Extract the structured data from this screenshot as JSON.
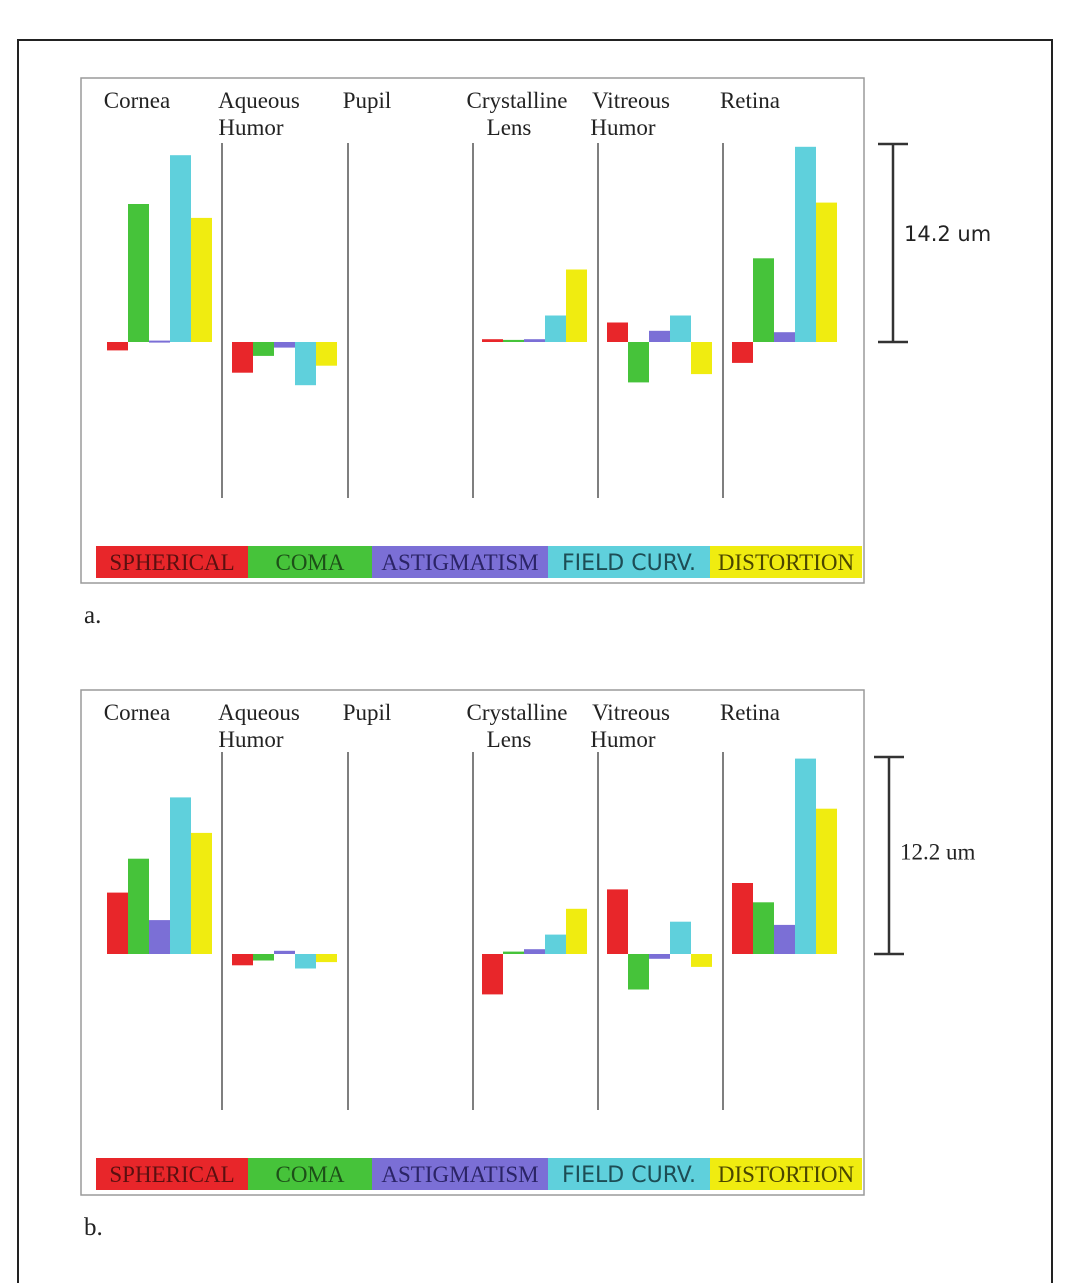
{
  "colors": {
    "spherical": "#e8262a",
    "coma": "#46c33a",
    "astigmatism": "#7b6fd6",
    "field_curv": "#5fd0dc",
    "distortion": "#f0ec10"
  },
  "legend": {
    "spherical": "SPHERICAL",
    "coma": "COMA",
    "astigmatism": "ASTIGMATISM",
    "field_curv": "FIELD CURV.",
    "distortion": "DISTORTION"
  },
  "chart_data": [
    {
      "type": "bar",
      "panel_label": "a.",
      "scale_bar": {
        "label": "14.2 um",
        "value": 14.2
      },
      "categories": [
        {
          "line1": "Cornea",
          "line2": ""
        },
        {
          "line1": "Aqueous",
          "line2": "Humor"
        },
        {
          "line1": "Pupil",
          "line2": ""
        },
        {
          "line1": "Crystalline",
          "line2": "Lens"
        },
        {
          "line1": "Vitreous",
          "line2": "Humor"
        },
        {
          "line1": "Retina",
          "line2": ""
        }
      ],
      "series": [
        {
          "name": "SPHERICAL",
          "key": "spherical",
          "values": [
            -0.6,
            -2.2,
            0,
            0.2,
            1.4,
            -1.5
          ]
        },
        {
          "name": "COMA",
          "key": "coma",
          "values": [
            9.9,
            -1.0,
            0,
            0.15,
            -2.9,
            6.0
          ]
        },
        {
          "name": "ASTIGMATISM",
          "key": "astigmatism",
          "values": [
            0.1,
            -0.4,
            0,
            0.2,
            0.8,
            0.7
          ]
        },
        {
          "name": "FIELD CURV.",
          "key": "field_curv",
          "values": [
            13.4,
            -3.1,
            0,
            1.9,
            1.9,
            14.0
          ]
        },
        {
          "name": "DISTORTION",
          "key": "distortion",
          "values": [
            8.9,
            -1.7,
            0,
            5.2,
            -2.3,
            10.0
          ]
        }
      ]
    },
    {
      "type": "bar",
      "panel_label": "b.",
      "scale_bar": {
        "label": "12.2 um",
        "value": 12.2
      },
      "categories": [
        {
          "line1": "Cornea",
          "line2": ""
        },
        {
          "line1": "Aqueous",
          "line2": "Humor"
        },
        {
          "line1": "Pupil",
          "line2": ""
        },
        {
          "line1": "Crystalline",
          "line2": "Lens"
        },
        {
          "line1": "Vitreous",
          "line2": "Humor"
        },
        {
          "line1": "Retina",
          "line2": ""
        }
      ],
      "series": [
        {
          "name": "SPHERICAL",
          "key": "spherical",
          "values": [
            3.8,
            -0.7,
            0,
            -2.5,
            4.0,
            4.4
          ]
        },
        {
          "name": "COMA",
          "key": "coma",
          "values": [
            5.9,
            -0.4,
            0,
            0.15,
            -2.2,
            3.2
          ]
        },
        {
          "name": "ASTIGMATISM",
          "key": "astigmatism",
          "values": [
            2.1,
            0.2,
            0,
            0.3,
            -0.3,
            1.8
          ]
        },
        {
          "name": "FIELD CURV.",
          "key": "field_curv",
          "values": [
            9.7,
            -0.9,
            0,
            1.2,
            2.0,
            12.1
          ]
        },
        {
          "name": "DISTORTION",
          "key": "distortion",
          "values": [
            7.5,
            -0.5,
            0,
            2.8,
            -0.8,
            9.0
          ]
        }
      ]
    }
  ]
}
